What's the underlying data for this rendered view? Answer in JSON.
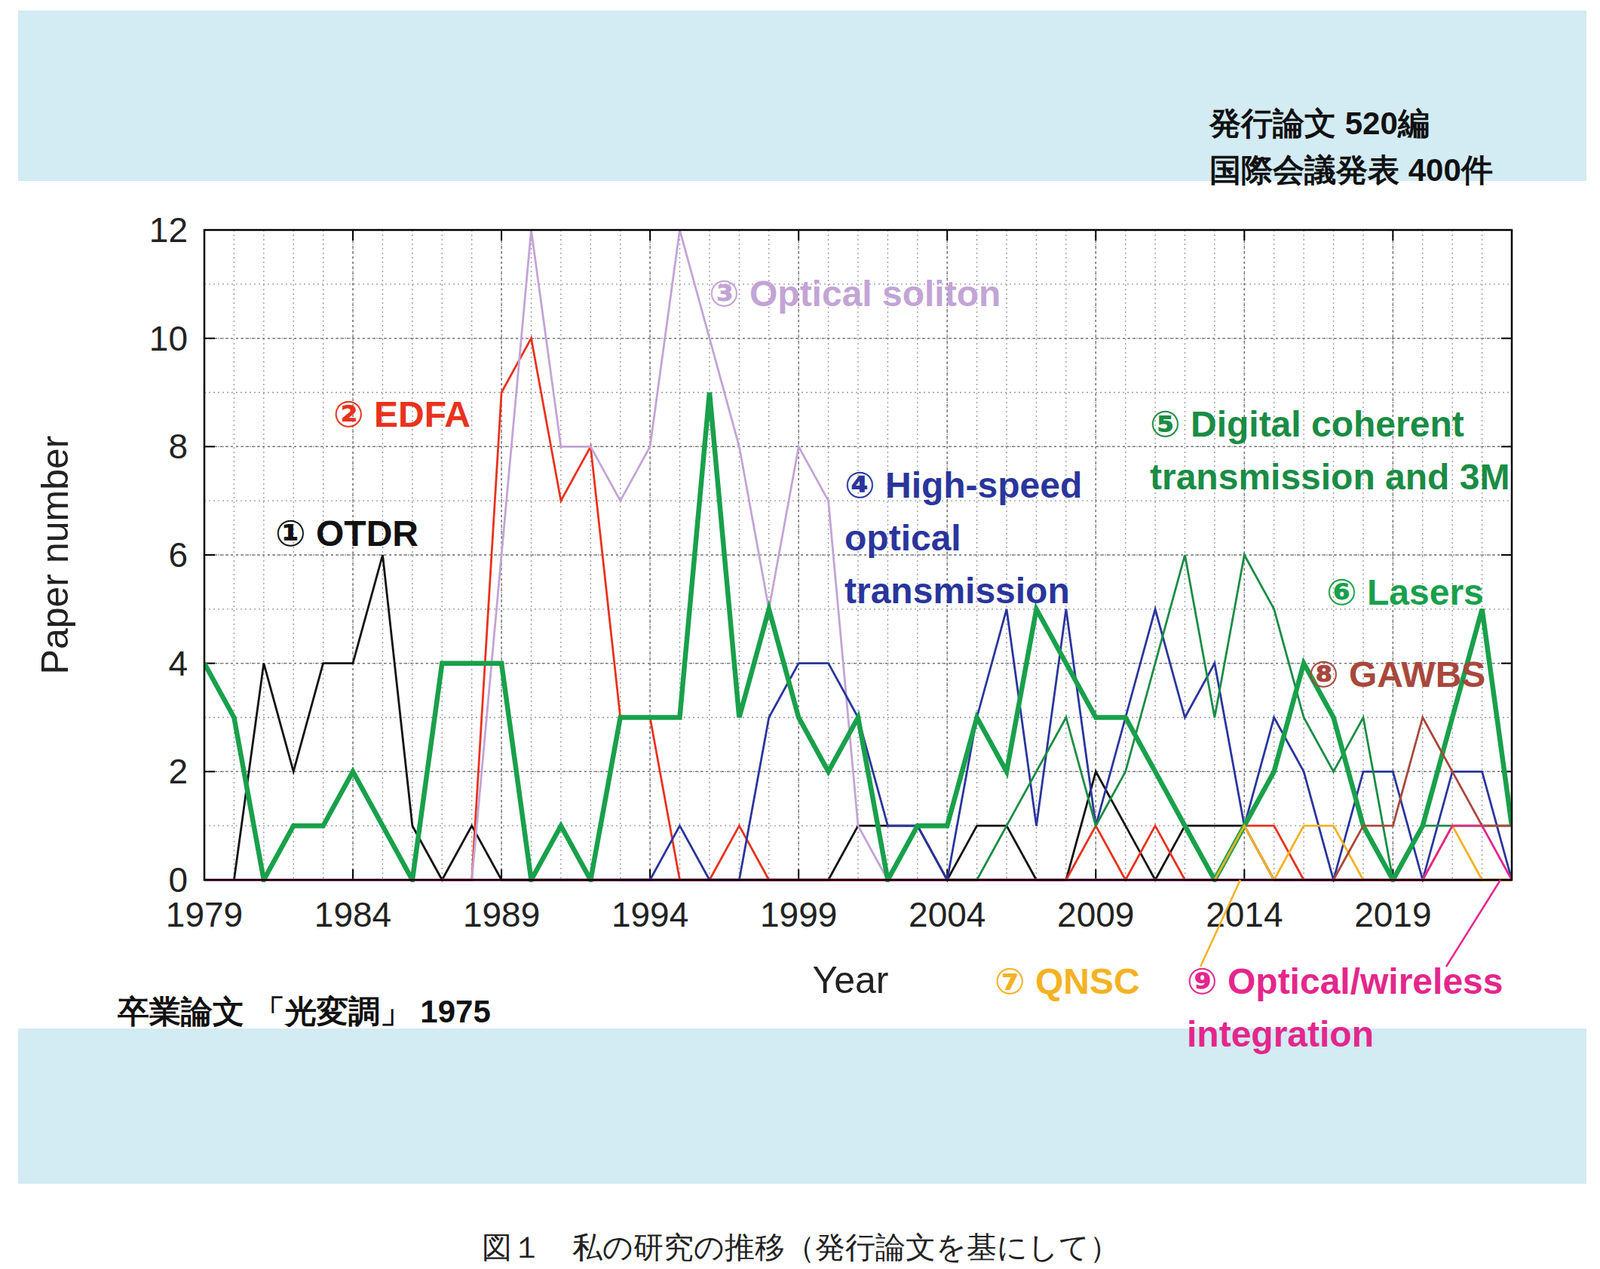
{
  "chart_data": {
    "type": "line",
    "caption": "図１　私の研究の推移（発行論文を基にして）",
    "annotations": [
      "発行論文 520編",
      "国際会議発表 400件",
      "卒業論文 「光変調」 1975"
    ],
    "x_label": "Year",
    "y_label": "Paper number",
    "x": [
      1979,
      1980,
      1981,
      1982,
      1983,
      1984,
      1985,
      1986,
      1987,
      1988,
      1989,
      1990,
      1991,
      1992,
      1993,
      1994,
      1995,
      1996,
      1997,
      1998,
      1999,
      2000,
      2001,
      2002,
      2003,
      2004,
      2005,
      2006,
      2007,
      2008,
      2009,
      2010,
      2011,
      2012,
      2013,
      2014,
      2015,
      2016,
      2017,
      2018,
      2019,
      2020,
      2021,
      2022,
      2023
    ],
    "xlim": [
      1979,
      2023
    ],
    "xticks": [
      1979,
      1984,
      1989,
      1994,
      1999,
      2004,
      2009,
      2014,
      2019
    ],
    "ylim": [
      0,
      12
    ],
    "yticks": [
      0,
      2,
      4,
      6,
      8,
      10,
      12
    ],
    "grid": true,
    "series": [
      {
        "name": "① OTDR",
        "color": "#111111",
        "values": [
          null,
          0,
          4,
          2,
          4,
          4,
          6,
          1,
          0,
          1,
          0,
          0,
          0,
          0,
          0,
          0,
          0,
          0,
          0,
          0,
          0,
          0,
          1,
          1,
          1,
          0,
          1,
          1,
          0,
          0,
          2,
          1,
          0,
          1,
          1,
          1,
          0,
          0,
          0,
          0,
          0,
          0,
          0,
          0,
          0
        ]
      },
      {
        "name": "② EDFA",
        "color": "#e8321e",
        "values": [
          null,
          null,
          null,
          null,
          null,
          null,
          null,
          null,
          0,
          0,
          9,
          10,
          7,
          8,
          3,
          3,
          0,
          0,
          1,
          0,
          0,
          0,
          0,
          0,
          0,
          0,
          0,
          0,
          0,
          0,
          1,
          0,
          1,
          0,
          0,
          1,
          1,
          0,
          0,
          0,
          0,
          0,
          0,
          0,
          0
        ]
      },
      {
        "name": "③ Optical soliton",
        "color": "#c2a4d6",
        "values": [
          null,
          null,
          null,
          null,
          null,
          null,
          null,
          null,
          0,
          0,
          6,
          12,
          8,
          8,
          7,
          8,
          12,
          10,
          8,
          5,
          8,
          7,
          1,
          0,
          0,
          0,
          0,
          0,
          0,
          0,
          0,
          0,
          0,
          0,
          0,
          0,
          0,
          0,
          0,
          0,
          0,
          0,
          0,
          0,
          0
        ]
      },
      {
        "name": "④ High-speed optical transmission",
        "color": "#2a359c",
        "values": [
          null,
          null,
          null,
          null,
          null,
          null,
          null,
          null,
          null,
          null,
          null,
          null,
          null,
          null,
          0,
          0,
          1,
          0,
          0,
          3,
          4,
          4,
          3,
          1,
          1,
          0,
          3,
          5,
          1,
          5,
          1,
          3,
          5,
          3,
          4,
          1,
          3,
          2,
          0,
          2,
          2,
          0,
          2,
          2,
          0
        ]
      },
      {
        "name": "⑤ Digital coherent transmission and 3M",
        "color": "#1a8c45",
        "values": [
          null,
          null,
          null,
          null,
          null,
          null,
          null,
          null,
          null,
          null,
          null,
          null,
          null,
          null,
          null,
          null,
          null,
          null,
          null,
          null,
          null,
          null,
          null,
          null,
          null,
          0,
          0,
          1,
          2,
          3,
          1,
          2,
          4,
          6,
          3,
          6,
          5,
          3,
          2,
          3,
          0,
          1,
          1,
          1,
          1
        ]
      },
      {
        "name": "⑥ Lasers",
        "color": "#19a04b",
        "values": [
          4,
          3,
          0,
          1,
          1,
          2,
          1,
          0,
          4,
          4,
          4,
          0,
          1,
          0,
          3,
          3,
          3,
          9,
          3,
          5,
          3,
          2,
          3,
          0,
          1,
          1,
          3,
          2,
          5,
          4,
          3,
          3,
          2,
          1,
          0,
          1,
          2,
          4,
          3,
          1,
          0,
          1,
          3,
          5,
          1
        ]
      },
      {
        "name": "⑦ QNSC",
        "color": "#f4b223",
        "values": [
          null,
          null,
          null,
          null,
          null,
          null,
          null,
          null,
          null,
          null,
          null,
          null,
          null,
          null,
          null,
          null,
          null,
          null,
          null,
          null,
          null,
          null,
          null,
          null,
          null,
          null,
          null,
          null,
          null,
          null,
          null,
          null,
          null,
          null,
          0,
          1,
          0,
          1,
          1,
          0,
          0,
          0,
          1,
          0,
          0
        ]
      },
      {
        "name": "⑧ GAWBS",
        "color": "#a8473c",
        "values": [
          null,
          null,
          null,
          null,
          null,
          null,
          null,
          null,
          null,
          null,
          null,
          null,
          null,
          null,
          null,
          null,
          null,
          null,
          null,
          null,
          null,
          null,
          null,
          null,
          null,
          null,
          null,
          null,
          null,
          null,
          null,
          null,
          null,
          null,
          null,
          null,
          null,
          null,
          0,
          1,
          1,
          3,
          2,
          1,
          1
        ]
      },
      {
        "name": "⑨ Optical/wireless integration",
        "color": "#e4268c",
        "values": [
          0,
          0,
          0,
          0,
          0,
          0,
          0,
          0,
          0,
          0,
          0,
          0,
          0,
          0,
          0,
          0,
          0,
          0,
          0,
          0,
          0,
          0,
          0,
          0,
          0,
          0,
          0,
          0,
          0,
          0,
          0,
          0,
          0,
          0,
          0,
          0,
          0,
          0,
          0,
          0,
          0,
          0,
          1,
          1,
          0
        ]
      }
    ]
  }
}
